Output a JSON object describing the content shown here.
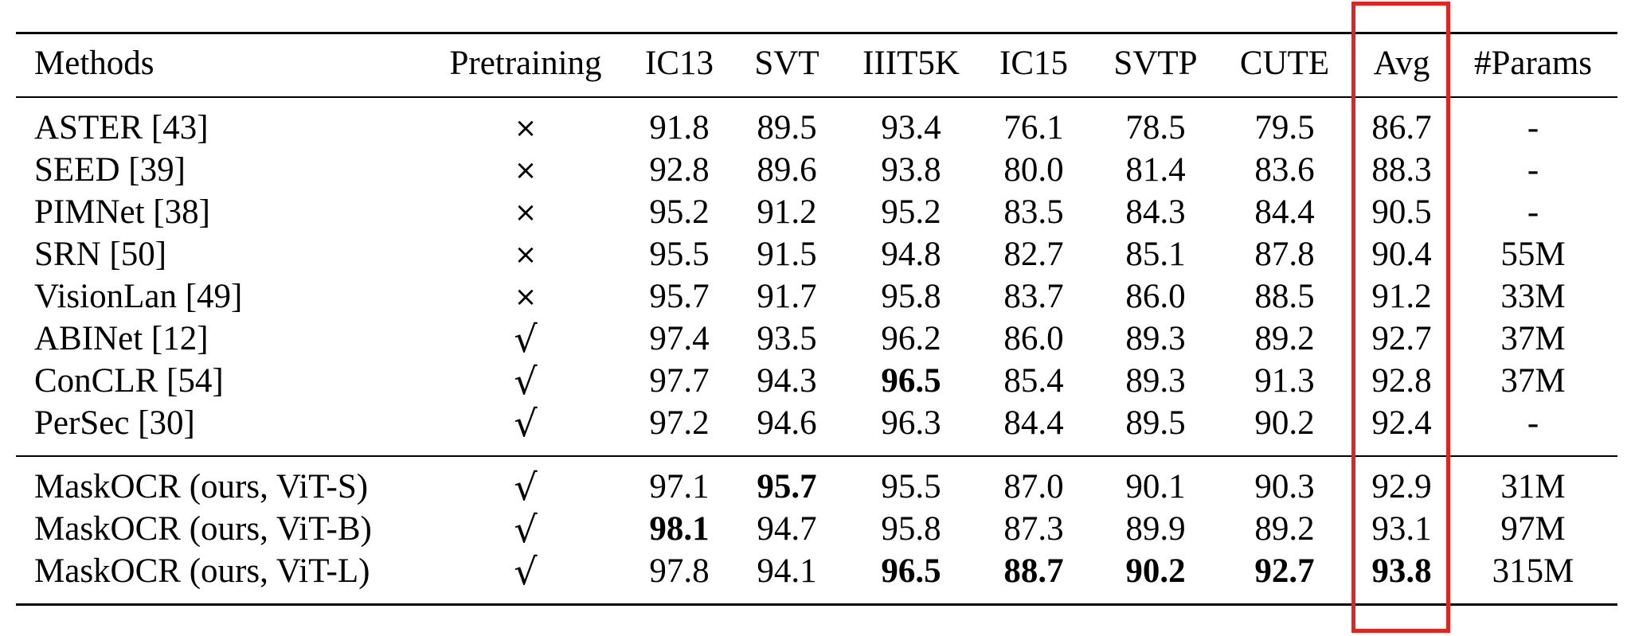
{
  "table": {
    "headers": [
      "Methods",
      "Pretraining",
      "IC13",
      "SVT",
      "IIIT5K",
      "IC15",
      "SVTP",
      "CUTE",
      "Avg",
      "#Params"
    ],
    "pretraining_symbols": {
      "no": "×",
      "yes": "√"
    },
    "rows": [
      {
        "method": "ASTER [43]",
        "pretraining": "no",
        "values": [
          "91.8",
          "89.5",
          "93.4",
          "76.1",
          "78.5",
          "79.5",
          "86.7",
          "-"
        ],
        "bold": []
      },
      {
        "method": "SEED [39]",
        "pretraining": "no",
        "values": [
          "92.8",
          "89.6",
          "93.8",
          "80.0",
          "81.4",
          "83.6",
          "88.3",
          "-"
        ],
        "bold": []
      },
      {
        "method": "PIMNet [38]",
        "pretraining": "no",
        "values": [
          "95.2",
          "91.2",
          "95.2",
          "83.5",
          "84.3",
          "84.4",
          "90.5",
          "-"
        ],
        "bold": []
      },
      {
        "method": "SRN [50]",
        "pretraining": "no",
        "values": [
          "95.5",
          "91.5",
          "94.8",
          "82.7",
          "85.1",
          "87.8",
          "90.4",
          "55M"
        ],
        "bold": []
      },
      {
        "method": "VisionLan [49]",
        "pretraining": "no",
        "values": [
          "95.7",
          "91.7",
          "95.8",
          "83.7",
          "86.0",
          "88.5",
          "91.2",
          "33M"
        ],
        "bold": []
      },
      {
        "method": "ABINet [12]",
        "pretraining": "yes",
        "values": [
          "97.4",
          "93.5",
          "96.2",
          "86.0",
          "89.3",
          "89.2",
          "92.7",
          "37M"
        ],
        "bold": []
      },
      {
        "method": "ConCLR [54]",
        "pretraining": "yes",
        "values": [
          "97.7",
          "94.3",
          "96.5",
          "85.4",
          "89.3",
          "91.3",
          "92.8",
          "37M"
        ],
        "bold": [
          2
        ]
      },
      {
        "method": "PerSec [30]",
        "pretraining": "yes",
        "values": [
          "97.2",
          "94.6",
          "96.3",
          "84.4",
          "89.5",
          "90.2",
          "92.4",
          "-"
        ],
        "bold": []
      },
      {
        "method": "MaskOCR (ours, ViT-S)",
        "pretraining": "yes",
        "values": [
          "97.1",
          "95.7",
          "95.5",
          "87.0",
          "90.1",
          "90.3",
          "92.9",
          "31M"
        ],
        "bold": [
          1
        ]
      },
      {
        "method": "MaskOCR (ours, ViT-B)",
        "pretraining": "yes",
        "values": [
          "98.1",
          "94.7",
          "95.8",
          "87.3",
          "89.9",
          "89.2",
          "93.1",
          "97M"
        ],
        "bold": [
          0
        ]
      },
      {
        "method": "MaskOCR (ours, ViT-L)",
        "pretraining": "yes",
        "values": [
          "97.8",
          "94.1",
          "96.5",
          "88.7",
          "90.2",
          "92.7",
          "93.8",
          "315M"
        ],
        "bold": [
          2,
          3,
          4,
          5,
          6
        ]
      }
    ]
  },
  "highlight": {
    "column": "Avg",
    "color": "#e8201e"
  }
}
